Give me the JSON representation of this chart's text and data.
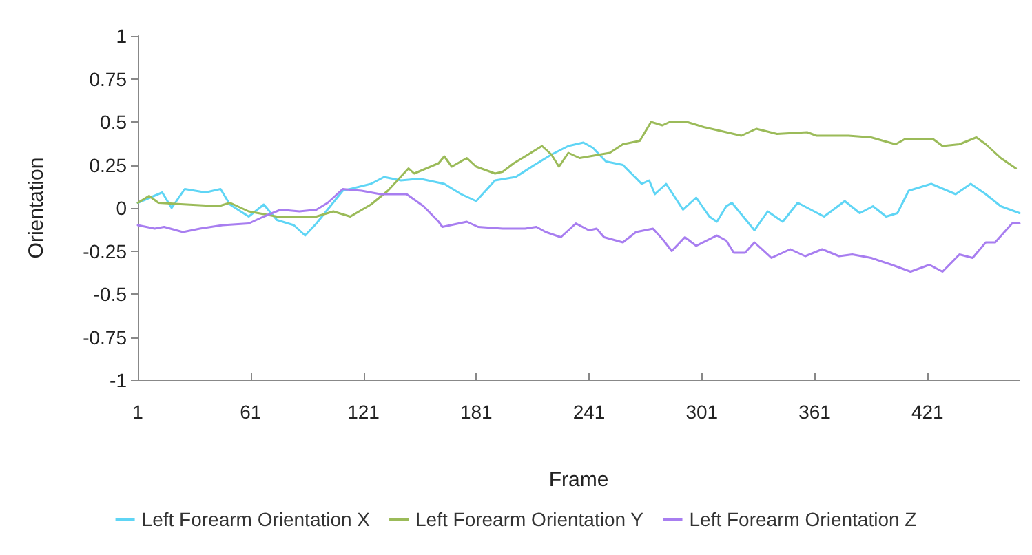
{
  "chart_data": {
    "type": "line",
    "xlabel": "Frame",
    "ylabel": "Orientation",
    "xlim": [
      1,
      470
    ],
    "xticks": [
      1,
      61,
      121,
      181,
      241,
      301,
      361,
      421
    ],
    "ylim": [
      -1,
      1
    ],
    "yticks": [
      -1,
      -0.75,
      -0.5,
      -0.25,
      0,
      0.25,
      0.5,
      0.75,
      1
    ],
    "grid": false,
    "legend": "bottom",
    "marker": "none",
    "line_style": "solid",
    "series": [
      {
        "name": "Left Forearm Orientation X",
        "color": "#5fd5f5",
        "x": [
          1,
          14,
          19,
          26,
          37,
          45,
          50,
          60,
          68,
          75,
          84,
          90,
          96,
          110,
          125,
          132,
          141,
          151,
          164,
          173,
          181,
          191,
          202,
          212,
          221,
          230,
          238,
          243,
          250,
          259,
          269,
          273,
          276,
          282,
          291,
          298,
          305,
          309,
          314,
          317,
          323,
          329,
          336,
          344,
          352,
          366,
          377,
          385,
          392,
          399,
          405,
          411,
          423,
          436,
          444,
          452,
          460,
          470
        ],
        "values": [
          0.03,
          0.09,
          0,
          0.11,
          0.09,
          0.11,
          0.02,
          -0.05,
          0.02,
          -0.07,
          -0.1,
          -0.16,
          -0.09,
          0.1,
          0.14,
          0.18,
          0.16,
          0.17,
          0.14,
          0.08,
          0.04,
          0.16,
          0.18,
          0.25,
          0.31,
          0.36,
          0.38,
          0.35,
          0.27,
          0.25,
          0.14,
          0.16,
          0.08,
          0.14,
          -0.01,
          0.06,
          -0.05,
          -0.08,
          0.01,
          0.03,
          -0.05,
          -0.13,
          -0.02,
          -0.08,
          0.03,
          -0.05,
          0.04,
          -0.03,
          0.01,
          -0.05,
          -0.03,
          0.1,
          0.14,
          0.08,
          0.14,
          0.08,
          0.01,
          -0.03
        ]
      },
      {
        "name": "Left Forearm Orientation Y",
        "color": "#9bbb59",
        "x": [
          1,
          7,
          12,
          27,
          44,
          50,
          60,
          75,
          84,
          96,
          105,
          114,
          125,
          134,
          145,
          148,
          161,
          164,
          168,
          176,
          181,
          191,
          195,
          201,
          216,
          221,
          225,
          230,
          236,
          252,
          259,
          268,
          274,
          280,
          284,
          293,
          302,
          314,
          322,
          330,
          341,
          357,
          362,
          379,
          391,
          404,
          409,
          424,
          429,
          438,
          447,
          452,
          460,
          468
        ],
        "values": [
          0.03,
          0.07,
          0.03,
          0.02,
          0.01,
          0.03,
          -0.02,
          -0.05,
          -0.05,
          -0.05,
          -0.02,
          -0.05,
          0.02,
          0.1,
          0.23,
          0.2,
          0.26,
          0.3,
          0.24,
          0.29,
          0.24,
          0.2,
          0.21,
          0.26,
          0.36,
          0.31,
          0.24,
          0.32,
          0.29,
          0.32,
          0.37,
          0.39,
          0.5,
          0.48,
          0.5,
          0.5,
          0.47,
          0.44,
          0.42,
          0.46,
          0.43,
          0.44,
          0.42,
          0.42,
          0.41,
          0.37,
          0.4,
          0.4,
          0.36,
          0.37,
          0.41,
          0.37,
          0.29,
          0.23
        ]
      },
      {
        "name": "Left Forearm Orientation Z",
        "color": "#a87ef0",
        "x": [
          1,
          10,
          15,
          25,
          34,
          46,
          60,
          68,
          77,
          87,
          96,
          102,
          110,
          120,
          130,
          144,
          153,
          161,
          163,
          176,
          182,
          195,
          207,
          213,
          218,
          226,
          234,
          241,
          245,
          249,
          259,
          266,
          275,
          280,
          285,
          292,
          298,
          309,
          314,
          318,
          324,
          329,
          338,
          348,
          356,
          365,
          374,
          381,
          391,
          402,
          412,
          422,
          429,
          438,
          445,
          452,
          457,
          466,
          470
        ],
        "values": [
          -0.1,
          -0.12,
          -0.11,
          -0.14,
          -0.12,
          -0.1,
          -0.09,
          -0.05,
          -0.01,
          -0.02,
          -0.01,
          0.03,
          0.11,
          0.1,
          0.08,
          0.08,
          0.01,
          -0.08,
          -0.11,
          -0.08,
          -0.11,
          -0.12,
          -0.12,
          -0.11,
          -0.14,
          -0.17,
          -0.09,
          -0.13,
          -0.12,
          -0.17,
          -0.2,
          -0.14,
          -0.12,
          -0.18,
          -0.25,
          -0.17,
          -0.22,
          -0.16,
          -0.19,
          -0.26,
          -0.26,
          -0.2,
          -0.29,
          -0.24,
          -0.28,
          -0.24,
          -0.28,
          -0.27,
          -0.29,
          -0.33,
          -0.37,
          -0.33,
          -0.37,
          -0.27,
          -0.29,
          -0.2,
          -0.2,
          -0.09,
          -0.09
        ]
      }
    ]
  }
}
